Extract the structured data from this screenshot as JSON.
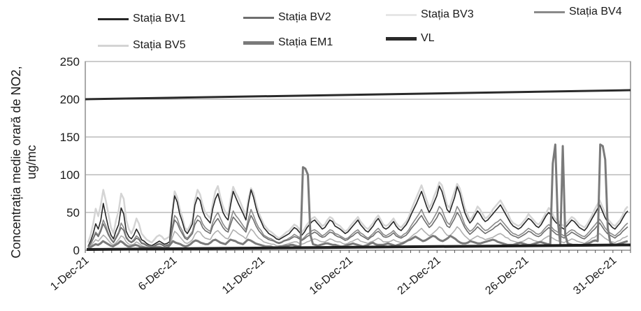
{
  "chart_data": {
    "type": "line",
    "title": "",
    "ylabel_line1": "Concentrația medie orară de NO2,",
    "ylabel_line2": "ug/mc",
    "ylim": [
      0,
      250
    ],
    "y_ticks": [
      "0",
      "50",
      "100",
      "150",
      "200",
      "250"
    ],
    "x_range_days": [
      1,
      32
    ],
    "x_tick_labels": [
      "1-Dec-21",
      "6-Dec-21",
      "11-Dec-21",
      "16-Dec-21",
      "21-Dec-21",
      "26-Dec-21",
      "31-Dec-21"
    ],
    "grid": "horizontal",
    "legend_position": "top",
    "series": [
      {
        "name": "Stația BV1",
        "color": "#262626",
        "values": [
          5,
          12,
          22,
          35,
          28,
          40,
          62,
          45,
          30,
          20,
          15,
          26,
          34,
          56,
          48,
          25,
          18,
          15,
          20,
          28,
          22,
          14,
          12,
          9,
          7,
          6,
          8,
          10,
          12,
          10,
          8,
          9,
          11,
          45,
          72,
          64,
          48,
          38,
          26,
          22,
          28,
          35,
          60,
          70,
          66,
          52,
          44,
          40,
          36,
          55,
          68,
          75,
          62,
          50,
          44,
          40,
          60,
          78,
          70,
          62,
          55,
          48,
          40,
          62,
          80,
          70,
          56,
          45,
          38,
          30,
          26,
          22,
          20,
          18,
          15,
          14,
          16,
          18,
          20,
          22,
          26,
          30,
          28,
          24,
          20,
          24,
          30,
          34,
          38,
          40,
          36,
          32,
          28,
          30,
          35,
          40,
          38,
          32,
          30,
          28,
          25,
          22,
          24,
          28,
          32,
          36,
          40,
          34,
          30,
          26,
          24,
          28,
          32,
          38,
          42,
          36,
          30,
          28,
          30,
          34,
          38,
          32,
          28,
          26,
          30,
          34,
          40,
          48,
          55,
          62,
          70,
          78,
          68,
          58,
          50,
          56,
          64,
          72,
          85,
          78,
          66,
          54,
          50,
          60,
          70,
          84,
          76,
          62,
          50,
          42,
          36,
          40,
          46,
          52,
          48,
          42,
          38,
          40,
          44,
          48,
          52,
          56,
          60,
          54,
          48,
          42,
          36,
          32,
          30,
          28,
          30,
          34,
          38,
          42,
          40,
          36,
          32,
          30,
          34,
          40,
          46,
          50,
          46,
          40,
          36,
          34,
          30,
          28,
          32,
          36,
          40,
          38,
          34,
          30,
          28,
          26,
          30,
          36,
          42,
          48,
          54,
          60,
          52,
          44,
          38,
          34,
          30,
          28,
          32,
          36,
          42,
          48,
          52
        ]
      },
      {
        "name": "Stația BV2",
        "color": "#6e6e6e",
        "values": [
          3,
          8,
          15,
          22,
          18,
          25,
          35,
          28,
          20,
          14,
          10,
          16,
          22,
          30,
          26,
          16,
          12,
          10,
          12,
          16,
          14,
          9,
          8,
          6,
          5,
          4,
          5,
          7,
          8,
          7,
          5,
          6,
          7,
          25,
          40,
          36,
          28,
          22,
          16,
          14,
          18,
          22,
          34,
          40,
          38,
          30,
          26,
          24,
          22,
          32,
          38,
          42,
          36,
          30,
          26,
          24,
          34,
          44,
          40,
          36,
          32,
          28,
          24,
          36,
          46,
          40,
          32,
          26,
          22,
          18,
          16,
          14,
          13,
          12,
          10,
          9,
          10,
          12,
          13,
          14,
          16,
          18,
          17,
          15,
          13,
          15,
          18,
          20,
          22,
          24,
          22,
          19,
          17,
          18,
          21,
          24,
          23,
          20,
          18,
          17,
          15,
          13,
          14,
          17,
          19,
          22,
          24,
          20,
          18,
          16,
          14,
          17,
          19,
          23,
          25,
          22,
          18,
          17,
          18,
          20,
          23,
          19,
          17,
          16,
          18,
          20,
          24,
          29,
          33,
          37,
          42,
          46,
          40,
          35,
          30,
          33,
          38,
          43,
          50,
          46,
          39,
          32,
          30,
          36,
          42,
          50,
          45,
          37,
          30,
          25,
          21,
          24,
          27,
          31,
          28,
          25,
          22,
          24,
          26,
          28,
          31,
          33,
          36,
          32,
          28,
          25,
          21,
          19,
          18,
          16,
          18,
          20,
          22,
          25,
          24,
          21,
          19,
          18,
          20,
          24,
          27,
          30,
          27,
          24,
          21,
          20,
          18,
          16,
          19,
          21,
          24,
          22,
          20,
          18,
          16,
          15,
          18,
          21,
          25,
          28,
          32,
          36,
          31,
          26,
          22,
          20,
          18,
          16,
          19,
          21,
          25,
          28,
          31
        ]
      },
      {
        "name": "Stația BV3",
        "color": "#b0b0b0",
        "values": [
          2,
          5,
          10,
          14,
          12,
          16,
          20,
          17,
          13,
          9,
          7,
          10,
          14,
          19,
          17,
          11,
          8,
          7,
          8,
          11,
          9,
          6,
          5,
          4,
          3,
          3,
          4,
          5,
          5,
          4,
          3,
          4,
          5,
          16,
          25,
          22,
          18,
          14,
          10,
          9,
          11,
          14,
          21,
          25,
          24,
          19,
          16,
          15,
          14,
          20,
          24,
          26,
          22,
          19,
          16,
          15,
          21,
          27,
          25,
          22,
          20,
          18,
          15,
          22,
          28,
          25,
          20,
          16,
          14,
          11,
          10,
          9,
          8,
          8,
          6,
          6,
          6,
          7,
          8,
          9,
          10,
          11,
          11,
          9,
          8,
          9,
          11,
          12,
          14,
          15,
          14,
          12,
          11,
          11,
          13,
          15,
          14,
          12,
          11,
          11,
          9,
          8,
          9,
          11,
          12,
          14,
          15,
          12,
          11,
          10,
          9,
          11,
          12,
          14,
          16,
          14,
          11,
          11,
          11,
          12,
          14,
          12,
          11,
          10,
          11,
          12,
          15,
          18,
          21,
          23,
          26,
          29,
          25,
          22,
          19,
          21,
          24,
          27,
          31,
          29,
          24,
          20,
          19,
          22,
          26,
          31,
          28,
          23,
          19,
          16,
          13,
          15,
          17,
          19,
          17,
          16,
          14,
          15,
          16,
          17,
          19,
          21,
          22,
          20,
          17,
          16,
          13,
          12,
          11,
          10,
          11,
          12,
          14,
          16,
          15,
          13,
          12,
          11,
          12,
          15,
          17,
          19,
          17,
          15,
          13,
          12,
          11,
          10,
          12,
          13,
          15,
          14,
          12,
          11,
          10,
          9,
          11,
          13,
          16,
          17,
          20,
          22,
          19,
          16,
          14,
          12,
          11,
          10,
          12,
          13,
          16,
          17,
          19
        ]
      },
      {
        "name": "Stația BV4",
        "color": "#8a8a8a",
        "values": [
          4,
          9,
          16,
          24,
          20,
          28,
          40,
          32,
          22,
          15,
          11,
          18,
          24,
          36,
          30,
          18,
          13,
          11,
          14,
          19,
          16,
          10,
          9,
          7,
          6,
          5,
          6,
          8,
          9,
          8,
          6,
          7,
          8,
          30,
          46,
          42,
          32,
          26,
          18,
          16,
          20,
          25,
          40,
          46,
          44,
          35,
          30,
          27,
          25,
          37,
          45,
          50,
          42,
          35,
          30,
          27,
          40,
          52,
          46,
          42,
          37,
          32,
          27,
          42,
          54,
          46,
          37,
          30,
          26,
          20,
          18,
          16,
          15,
          13,
          11,
          10,
          11,
          13,
          14,
          16,
          18,
          21,
          19,
          17,
          14,
          17,
          21,
          23,
          26,
          27,
          25,
          22,
          19,
          21,
          24,
          27,
          26,
          22,
          21,
          19,
          17,
          15,
          16,
          19,
          22,
          25,
          27,
          23,
          21,
          18,
          16,
          19,
          22,
          26,
          29,
          25,
          21,
          19,
          21,
          23,
          26,
          22,
          19,
          18,
          21,
          23,
          27,
          33,
          38,
          43,
          48,
          54,
          46,
          40,
          34,
          38,
          44,
          50,
          58,
          54,
          45,
          37,
          34,
          41,
          48,
          58,
          52,
          43,
          34,
          29,
          25,
          27,
          31,
          36,
          33,
          29,
          26,
          27,
          30,
          33,
          36,
          38,
          41,
          37,
          33,
          29,
          25,
          22,
          21,
          19,
          21,
          23,
          26,
          29,
          27,
          25,
          22,
          21,
          23,
          27,
          31,
          34,
          31,
          27,
          25,
          23,
          21,
          19,
          22,
          25,
          27,
          26,
          23,
          21,
          19,
          18,
          21,
          25,
          29,
          33,
          37,
          41,
          36,
          30,
          26,
          23,
          21,
          19,
          22,
          25,
          29,
          33,
          36
        ]
      },
      {
        "name": "Stația BV5",
        "color": "#d4d4d4",
        "values": [
          10,
          20,
          35,
          55,
          45,
          60,
          80,
          65,
          48,
          30,
          22,
          40,
          52,
          75,
          68,
          40,
          28,
          22,
          30,
          42,
          35,
          22,
          18,
          14,
          12,
          10,
          14,
          18,
          20,
          18,
          14,
          16,
          18,
          50,
          78,
          70,
          55,
          44,
          30,
          26,
          32,
          40,
          66,
          80,
          74,
          60,
          50,
          46,
          42,
          62,
          78,
          85,
          70,
          58,
          50,
          46,
          68,
          84,
          76,
          70,
          62,
          54,
          46,
          68,
          82,
          76,
          62,
          50,
          42,
          34,
          30,
          26,
          24,
          21,
          18,
          16,
          18,
          21,
          24,
          26,
          30,
          34,
          32,
          28,
          24,
          28,
          34,
          38,
          42,
          44,
          40,
          36,
          32,
          34,
          40,
          44,
          42,
          36,
          34,
          32,
          28,
          25,
          27,
          32,
          36,
          40,
          44,
          38,
          34,
          30,
          28,
          32,
          36,
          42,
          46,
          40,
          34,
          32,
          34,
          38,
          42,
          36,
          32,
          30,
          34,
          38,
          44,
          54,
          62,
          70,
          78,
          86,
          76,
          66,
          56,
          62,
          72,
          80,
          90,
          86,
          74,
          60,
          56,
          68,
          78,
          88,
          82,
          70,
          56,
          48,
          40,
          44,
          50,
          58,
          54,
          48,
          42,
          44,
          48,
          54,
          58,
          62,
          66,
          60,
          54,
          48,
          40,
          36,
          34,
          32,
          34,
          38,
          42,
          48,
          44,
          40,
          36,
          34,
          38,
          44,
          50,
          56,
          52,
          44,
          40,
          38,
          34,
          32,
          36,
          40,
          44,
          42,
          38,
          34,
          32,
          30,
          34,
          40,
          46,
          54,
          60,
          66,
          58,
          50,
          42,
          38,
          34,
          32,
          36,
          40,
          46,
          54,
          58
        ]
      },
      {
        "name": "Stația EM1",
        "color": "#7a7a7a",
        "values": [
          2,
          4,
          6,
          8,
          7,
          9,
          12,
          10,
          8,
          6,
          5,
          7,
          9,
          12,
          10,
          7,
          5,
          5,
          6,
          7,
          6,
          4,
          4,
          3,
          3,
          2,
          3,
          4,
          4,
          4,
          3,
          3,
          4,
          8,
          12,
          10,
          9,
          8,
          6,
          5,
          6,
          8,
          11,
          13,
          12,
          10,
          9,
          8,
          8,
          10,
          13,
          14,
          12,
          10,
          9,
          8,
          11,
          14,
          13,
          12,
          10,
          9,
          8,
          11,
          14,
          13,
          11,
          9,
          8,
          7,
          6,
          5,
          5,
          5,
          4,
          4,
          4,
          5,
          5,
          6,
          6,
          7,
          7,
          6,
          5,
          6,
          110,
          108,
          100,
          20,
          8,
          7,
          6,
          7,
          8,
          9,
          9,
          8,
          7,
          7,
          6,
          5,
          5,
          6,
          7,
          8,
          9,
          8,
          7,
          6,
          5,
          6,
          7,
          9,
          10,
          8,
          7,
          7,
          7,
          8,
          9,
          8,
          7,
          6,
          7,
          8,
          9,
          11,
          13,
          14,
          16,
          18,
          16,
          14,
          12,
          13,
          15,
          17,
          19,
          18,
          15,
          13,
          12,
          14,
          16,
          19,
          17,
          15,
          12,
          10,
          9,
          9,
          10,
          12,
          11,
          10,
          9,
          9,
          10,
          11,
          12,
          13,
          14,
          13,
          11,
          10,
          9,
          8,
          7,
          7,
          7,
          8,
          9,
          10,
          9,
          8,
          7,
          7,
          8,
          9,
          10,
          11,
          10,
          9,
          8,
          8,
          115,
          140,
          40,
          8,
          138,
          20,
          9,
          8,
          7,
          7,
          7,
          6,
          7,
          8,
          9,
          10,
          12,
          13,
          12,
          140,
          138,
          120,
          30,
          10,
          8,
          7,
          8,
          9,
          10,
          11,
          12
        ]
      }
    ],
    "limit_line": {
      "name": "VL",
      "color": "#2a2a2a",
      "values_start_end": [
        200,
        212
      ]
    }
  }
}
